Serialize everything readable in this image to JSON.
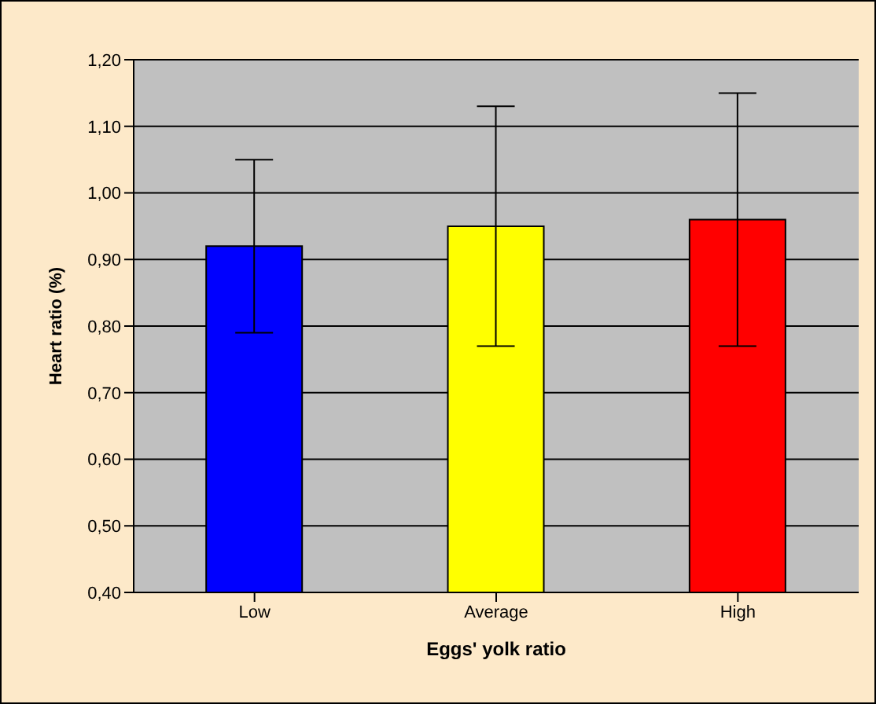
{
  "chart_data": {
    "type": "bar",
    "xlabel": "Eggs' yolk ratio",
    "ylabel": "Heart ratio (%)",
    "categories": [
      "Low",
      "Average",
      "High"
    ],
    "values": [
      0.92,
      0.95,
      0.96
    ],
    "colors": [
      "#0000ff",
      "#ffff00",
      "#ff0000"
    ],
    "errors": [
      [
        0.79,
        1.05
      ],
      [
        0.77,
        1.13
      ],
      [
        0.77,
        1.15
      ]
    ],
    "ylim": [
      0.4,
      1.2
    ],
    "yticks": [
      {
        "value": 0.4,
        "label": "0,40"
      },
      {
        "value": 0.5,
        "label": "0,50"
      },
      {
        "value": 0.6,
        "label": "0,60"
      },
      {
        "value": 0.7,
        "label": "0,70"
      },
      {
        "value": 0.8,
        "label": "0,80"
      },
      {
        "value": 0.9,
        "label": "0,90"
      },
      {
        "value": 1.0,
        "label": "1,00"
      },
      {
        "value": 1.1,
        "label": "1,10"
      },
      {
        "value": 1.2,
        "label": "1,20"
      }
    ],
    "grid": "y",
    "legend": false
  }
}
